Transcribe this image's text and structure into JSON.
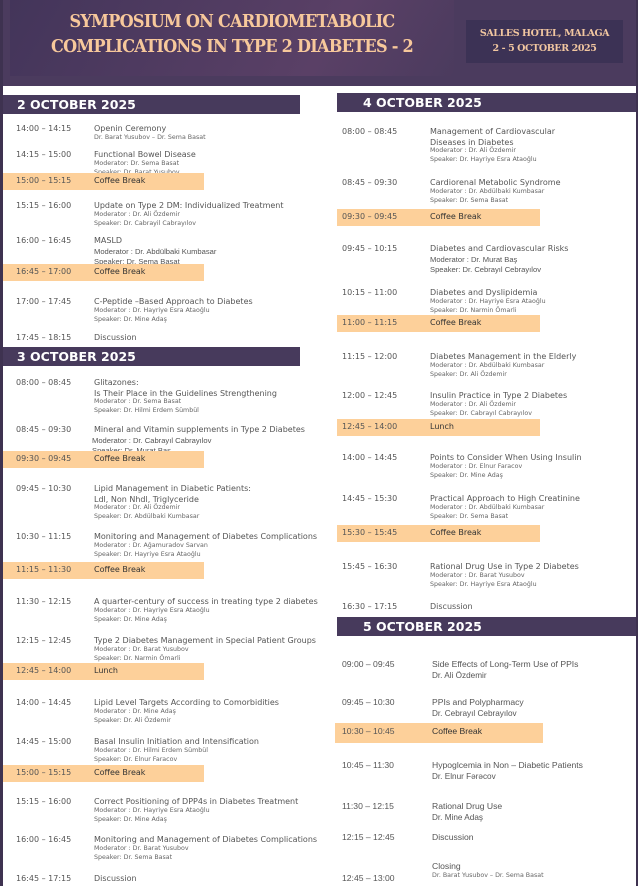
{
  "header": {
    "title_line1": "SYMPOSIUM ON CARDIOMETABOLIC",
    "title_line2": "COMPLICATIONS IN TYPE 2 DIABETES - 2",
    "venue": "SALLES HOTEL, MALAGA",
    "dates": "2 - 5 OCTOBER 2025"
  },
  "colors": {
    "header_bg": "#4b3b5e",
    "title_text": "#f7c89b",
    "break_bg": "#fdd09a",
    "day_header_bg": "#473a5c"
  },
  "days": [
    {
      "label": "2 OCTOBER 2025",
      "sessions": [
        {
          "time": "14:00 – 14:15",
          "lines": [
            "Openin Ceremony"
          ],
          "subs": [
            "Dr. Barat Yusubov – Dr. Sema Basat"
          ]
        },
        {
          "time": "14:15 – 15:00",
          "lines": [
            "Functional Bowel Disease"
          ],
          "subs": [
            "Moderator: Dr. Sema Basat",
            "Speaker: Dr. Barat Yusubov"
          ]
        },
        {
          "time": "15:00 – 15:15",
          "lines": [
            "Coffee Break"
          ],
          "break": true
        },
        {
          "time": "15:15 – 16:00",
          "lines": [
            "Update on Type 2 DM: Individualized Treatment"
          ],
          "subs": [
            "Moderator : Dr. Ali Özdemir",
            "Speaker: Dr. Cabrayil Cabrayılov"
          ]
        },
        {
          "time": "16:00 – 16:45",
          "lines": [
            "MASLD",
            "Moderator : Dr. Abdülbaki Kumbasar",
            "Speaker: Dr. Sema Basat"
          ]
        },
        {
          "time": "16:45 – 17:00",
          "lines": [
            "Coffee Break"
          ],
          "break": true
        },
        {
          "time": "17:00 – 17:45",
          "lines": [
            "C-Peptide –Based Approach to Diabetes"
          ],
          "subs": [
            "Moderator : Dr. Hayriye Esra Ataoğlu",
            "Speaker: Dr. Mine Adaş"
          ]
        },
        {
          "time": "17:45 – 18:15",
          "lines": [
            "Discussion"
          ]
        }
      ]
    },
    {
      "label": "3 OCTOBER 2025",
      "sessions": [
        {
          "time": "08:00 – 08:45",
          "lines": [
            "Glitazones:",
            "Is Their Place in the Guidelines Strengthening"
          ],
          "subs": [
            "Moderator : Dr. Sema Basat",
            "Speaker: Dr. Hilmi Erdem Sümbül"
          ]
        },
        {
          "time": "08:45 – 09:30",
          "lines": [
            "Mineral and Vitamin supplements in Type 2 Diabetes",
            "Moderator : Dr. Cabrayıl Cabrayılov",
            "Speaker: Dr. Murat Baş"
          ]
        },
        {
          "time": "09:30 – 09:45",
          "lines": [
            "Coffee Break"
          ],
          "break": true
        },
        {
          "time": "09:45 – 10:30",
          "lines": [
            "Lipid Management in Diabetic Patients:",
            "Ldl, Non Nhdl, Triglyceride"
          ],
          "subs": [
            "Moderator : Dr. Ali Özdemir",
            "Speaker: Dr. Abdülbaki Kumbasar"
          ]
        },
        {
          "time": "10:30 – 11:15",
          "lines": [
            "Monitoring and Management of Diabetes Complications"
          ],
          "subs": [
            "Moderator : Dr. Ağamuradov Sarvan",
            "Speaker: Dr. Hayriye Esra Ataoğlu"
          ]
        },
        {
          "time": "11:15 – 11:30",
          "lines": [
            "Coffee Break"
          ],
          "break": true
        },
        {
          "time": "11:30 – 12:15",
          "lines": [
            "A quarter-century of success in treating type 2 diabetes"
          ],
          "subs": [
            "Moderator : Dr. Hayriye Esra Ataoğlu",
            "Speaker: Dr. Mine Adaş"
          ]
        },
        {
          "time": "12:15 – 12:45",
          "lines": [
            "Type 2 Diabetes Management in Special Patient Groups"
          ],
          "subs": [
            "Moderator : Dr. Barat Yusubov",
            "Speaker: Dr. Narmin Ömarli"
          ]
        },
        {
          "time": "12:45 – 14:00",
          "lines": [
            "Lunch"
          ],
          "break": true
        },
        {
          "time": "14:00 – 14:45",
          "lines": [
            "Lipid Level Targets According to Comorbidities"
          ],
          "subs": [
            "Moderator : Dr. Mine Adaş",
            "Speaker: Dr. Ali Özdemir"
          ]
        },
        {
          "time": "14:45 – 15:00",
          "lines": [
            "Basal Insulin Initiation and Intensification"
          ],
          "subs": [
            "Moderator : Dr. Hilmi Erdem Sümbül",
            "Speaker: Dr. Elnur Faracov"
          ]
        },
        {
          "time": "15:00 – 15:15",
          "lines": [
            "Coffee Break"
          ],
          "break": true
        },
        {
          "time": "15:15 – 16:00",
          "lines": [
            "Correct Positioning of DPP4s in Diabetes Treatment"
          ],
          "subs": [
            "Moderator : Dr. Hayriye Esra Ataoğlu",
            "Speaker: Dr. Mine Adaş"
          ]
        },
        {
          "time": "16:00 – 16:45",
          "lines": [
            "Monitoring and Management of Diabetes Complications"
          ],
          "subs": [
            "Moderator : Dr. Barat Yusubov",
            "Speaker: Dr. Sema Basat"
          ]
        },
        {
          "time": "16:45 – 17:15",
          "lines": [
            "Discussion"
          ]
        }
      ]
    },
    {
      "label": "4 OCTOBER 2025",
      "sessions": [
        {
          "time": "08:00 – 08:45",
          "lines": [
            "Management of Cardiovascular",
            "Diseases in Diabetes"
          ],
          "subs": [
            "Moderator : Dr. Ali Özdemir",
            "Speaker: Dr. Hayriye Esra Ataoğlu"
          ]
        },
        {
          "time": "08:45 – 09:30",
          "lines": [
            "Cardiorenal Metabolic Syndrome"
          ],
          "subs": [
            "Moderator : Dr. Abdülbaki Kumbasar",
            "Speaker: Dr. Sema Basat"
          ]
        },
        {
          "time": "09:30 – 09:45",
          "lines": [
            "Coffee Break"
          ],
          "break": true
        },
        {
          "time": "09:45 – 10:15",
          "lines": [
            "Diabetes and Cardiovascular Risks",
            "Moderator : Dr. Murat Baş",
            "Speaker: Dr. Cebrayıl Cebrayılov"
          ]
        },
        {
          "time": "10:15 – 11:00",
          "lines": [
            "Diabetes and Dyslipidemia"
          ],
          "subs": [
            "Moderator : Dr. Hayriye Esra Ataoğlu",
            "Speaker: Dr. Narmin Ömarli"
          ]
        },
        {
          "time": "11:00 – 11:15",
          "lines": [
            "Coffee Break"
          ],
          "break": true
        },
        {
          "time": "11:15 – 12:00",
          "lines": [
            "Diabetes Management in the Elderly"
          ],
          "subs": [
            "Moderator : Dr. Abdülbaki Kumbasar",
            "Speaker: Dr. Ali Özdemir"
          ]
        },
        {
          "time": "12:00 – 12:45",
          "lines": [
            "Insulin Practice in Type 2 Diabetes"
          ],
          "subs": [
            "Moderator : Dr. Ali Özdemir",
            "Speaker: Dr. Cabrayıl Cabrayılov"
          ]
        },
        {
          "time": "12:45 – 14:00",
          "lines": [
            "Lunch"
          ],
          "break": true
        },
        {
          "time": "14:00 – 14:45",
          "lines": [
            "Points to Consider When Using Insulin"
          ],
          "subs": [
            "Moderator : Dr. Elnur Faracov",
            "Speaker: Dr. Mine Adaş"
          ]
        },
        {
          "time": "14:45 – 15:30",
          "lines": [
            "Practical Approach to High Creatinine"
          ],
          "subs": [
            "Moderator : Dr. Abdülbaki Kumbasar",
            "Speaker: Dr. Sema Basat"
          ]
        },
        {
          "time": "15:30 – 15:45",
          "lines": [
            "Coffee Break"
          ],
          "break": true
        },
        {
          "time": "15:45 – 16:30",
          "lines": [
            "Rational Drug Use in Type 2 Diabetes"
          ],
          "subs": [
            "Moderator : Dr. Barat Yusubov",
            "Speaker: Dr. Hayriye Esra Ataoğlu"
          ]
        },
        {
          "time": "16:30 – 17:15",
          "lines": [
            "Discussion"
          ]
        }
      ]
    },
    {
      "label": "5 OCTOBER 2025",
      "sessions": [
        {
          "time": "09:00 – 09:45",
          "lines": [
            "Side Effects of Long-Term Use of PPIs",
            "Dr. Ali Özdemir"
          ]
        },
        {
          "time": "09:45 – 10:30",
          "lines": [
            "PPIs and Polypharmacy",
            "Dr. Cebrayıl Cebrayılov"
          ]
        },
        {
          "time": "10:30 – 10:45",
          "lines": [
            "Coffee Break"
          ],
          "break": true
        },
        {
          "time": "10:45 – 11:30",
          "lines": [
            "Hypoglcemia in Non – Diabetic Patients",
            "Dr. Elnur Fərəcov"
          ]
        },
        {
          "time": "11:30 – 12:15",
          "lines": [
            "Rational Drug Use",
            "Dr. Mine Adaş"
          ]
        },
        {
          "time": "12:15 – 12:45",
          "lines": [
            "Discussion"
          ]
        },
        {
          "time": "12:45 – 13:00",
          "lines": [
            "Closing"
          ],
          "subs": [
            "Dr. Barat Yusubov – Dr. Sema Basat"
          ]
        }
      ]
    }
  ]
}
